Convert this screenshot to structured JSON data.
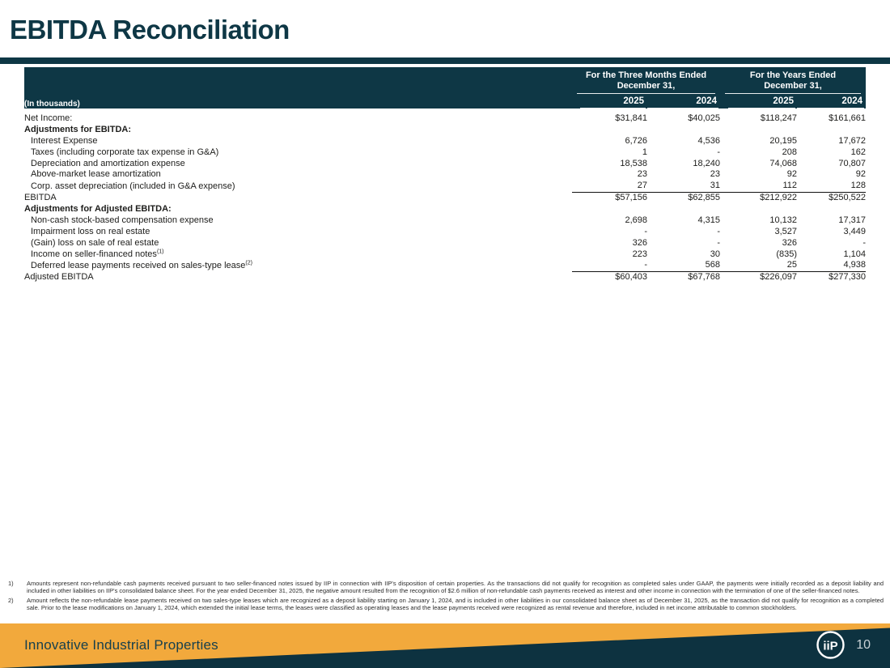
{
  "slide": {
    "title": "EBITDA Reconciliation",
    "brand": "Innovative Industrial Properties",
    "page_number": "10",
    "logo_text": "iiP",
    "colors": {
      "dark_teal": "#0e3745",
      "gold": "#f2a93c"
    }
  },
  "table": {
    "units_label": "(In thousands)",
    "col_groups": [
      {
        "line1": "For the Three Months Ended",
        "line2": "December 31,"
      },
      {
        "line1": "For the Years Ended",
        "line2": "December 31,"
      }
    ],
    "year_cols": [
      "2025",
      "2024",
      "2025",
      "2024"
    ],
    "rows": [
      {
        "label": "Net Income:",
        "style": "plain",
        "values": [
          "$31,841",
          "$40,025",
          "$118,247",
          "$161,661"
        ]
      },
      {
        "label": "Adjustments for EBITDA:",
        "style": "bold",
        "values": [
          "",
          "",
          "",
          ""
        ]
      },
      {
        "label": "Interest Expense",
        "style": "indent",
        "values": [
          "6,726",
          "4,536",
          "20,195",
          "17,672"
        ]
      },
      {
        "label": "Taxes (including corporate tax expense in G&A)",
        "style": "indent",
        "values": [
          "1",
          "-",
          "208",
          "162"
        ]
      },
      {
        "label": "Depreciation and amortization expense",
        "style": "indent",
        "values": [
          "18,538",
          "18,240",
          "74,068",
          "70,807"
        ]
      },
      {
        "label": "Above-market lease amortization",
        "style": "indent",
        "values": [
          "23",
          "23",
          "92",
          "92"
        ]
      },
      {
        "label": "Corp. asset depreciation (included in G&A expense)",
        "style": "indent",
        "values": [
          "27",
          "31",
          "112",
          "128"
        ]
      },
      {
        "label": "EBITDA",
        "style": "total",
        "values": [
          "$57,156",
          "$62,855",
          "$212,922",
          "$250,522"
        ]
      },
      {
        "label": "Adjustments for Adjusted EBITDA:",
        "style": "bold",
        "values": [
          "",
          "",
          "",
          ""
        ]
      },
      {
        "label": "Non-cash stock-based compensation expense",
        "style": "indent",
        "values": [
          "2,698",
          "4,315",
          "10,132",
          "17,317"
        ]
      },
      {
        "label": "Impairment loss on real estate",
        "style": "indent",
        "values": [
          "-",
          "-",
          "3,527",
          "3,449"
        ]
      },
      {
        "label": "(Gain) loss on sale of real estate",
        "style": "indent",
        "values": [
          "326",
          "-",
          "326",
          "-"
        ]
      },
      {
        "label": "Income on seller-financed notes",
        "sup": "(1)",
        "style": "indent",
        "values": [
          "223",
          "30",
          "(835)",
          "1,104"
        ]
      },
      {
        "label": "Deferred lease payments received on sales-type lease",
        "sup": "(2)",
        "style": "indent",
        "values": [
          "-",
          "568",
          "25",
          "4,938"
        ]
      },
      {
        "label": "Adjusted EBITDA",
        "style": "total",
        "values": [
          "$60,403",
          "$67,768",
          "$226,097",
          "$277,330"
        ]
      }
    ]
  },
  "footnotes": [
    {
      "marker": "1)",
      "text": "Amounts represent non-refundable cash payments received pursuant to two seller-financed notes issued by IIP in connection with IIP's disposition of certain properties. As the transactions did not qualify for recognition as completed sales under GAAP, the payments were initially recorded as a deposit liability and included in other liabilities on IIP's consolidated balance sheet. For the year ended December 31, 2025, the negative amount resulted from the recognition of $2.6 million of non-refundable cash payments received as interest and other income in connection with the termination of one of the seller-financed notes."
    },
    {
      "marker": "2)",
      "text": "Amount reflects the non-refundable lease payments received on two sales-type leases which are recognized as a deposit liability starting on January 1, 2024, and is included in other liabilities in our consolidated balance sheet as of December 31, 2025, as the transaction did not qualify for recognition as a completed sale. Prior to the lease modifications on January 1, 2024, which extended the initial lease terms, the leases were classified as operating leases and the lease payments received were recognized as rental revenue and therefore, included in net income attributable to common stockholders."
    }
  ]
}
